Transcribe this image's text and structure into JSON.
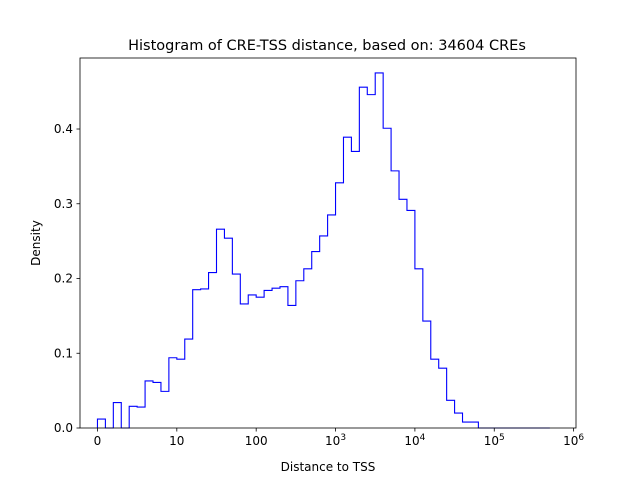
{
  "chart_data": {
    "type": "histogram",
    "title": "Histogram of CRE-TSS distance, based on: 34604 CREs",
    "xlabel": "Distance to TSS",
    "ylabel": "Density",
    "x_scale": "log10(distance + 1)",
    "x_axis_range": [
      -0.22,
      6.03
    ],
    "ylim": [
      0,
      0.495
    ],
    "grid": false,
    "legend": "none",
    "colors": {
      "histogram_line": "#0000ff",
      "axes": "#000000",
      "background": "#ffffff"
    },
    "x_ticks": [
      {
        "value": 0,
        "label": "0"
      },
      {
        "value": 1,
        "label": "10"
      },
      {
        "value": 2,
        "label": "100"
      },
      {
        "value": 3,
        "label": "10",
        "exp": "3"
      },
      {
        "value": 4,
        "label": "10",
        "exp": "4"
      },
      {
        "value": 5,
        "label": "10",
        "exp": "5"
      },
      {
        "value": 6,
        "label": "10",
        "exp": "6"
      }
    ],
    "y_ticks": [
      {
        "value": 0.0,
        "label": "0.0"
      },
      {
        "value": 0.1,
        "label": "0.1"
      },
      {
        "value": 0.2,
        "label": "0.2"
      },
      {
        "value": 0.3,
        "label": "0.3"
      },
      {
        "value": 0.4,
        "label": "0.4"
      }
    ],
    "bin_edges": [
      0,
      0.1,
      0.2,
      0.3,
      0.4,
      0.5,
      0.6,
      0.7,
      0.8,
      0.9,
      1.0,
      1.1,
      1.2,
      1.3,
      1.4,
      1.5,
      1.6,
      1.7,
      1.8,
      1.9,
      2.0,
      2.1,
      2.2,
      2.3,
      2.4,
      2.5,
      2.6,
      2.7,
      2.8,
      2.9,
      3.0,
      3.1,
      3.2,
      3.3,
      3.4,
      3.5,
      3.6,
      3.7,
      3.8,
      3.9,
      4.0,
      4.1,
      4.2,
      4.3,
      4.4,
      4.5,
      4.6,
      4.7,
      4.8,
      4.9,
      5.0,
      5.1,
      5.2,
      5.3,
      5.4,
      5.5,
      5.6,
      5.7
    ],
    "density": [
      0.012,
      0.0,
      0.034,
      0.0,
      0.029,
      0.028,
      0.063,
      0.061,
      0.049,
      0.094,
      0.092,
      0.119,
      0.185,
      0.186,
      0.208,
      0.266,
      0.254,
      0.206,
      0.166,
      0.178,
      0.175,
      0.184,
      0.187,
      0.189,
      0.164,
      0.197,
      0.213,
      0.236,
      0.257,
      0.285,
      0.328,
      0.389,
      0.37,
      0.456,
      0.446,
      0.475,
      0.401,
      0.344,
      0.306,
      0.291,
      0.213,
      0.143,
      0.092,
      0.08,
      0.037,
      0.02,
      0.008,
      0.008,
      0.0,
      0.0,
      0.0,
      0.0,
      0.0,
      0.0,
      0.0,
      0.0,
      0.0
    ]
  }
}
